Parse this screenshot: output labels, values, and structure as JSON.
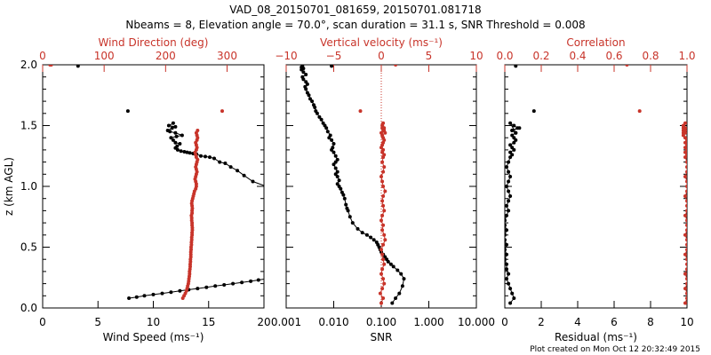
{
  "title_line1": "VAD_08_20150701_081659, 20150701.081718",
  "title_line2": "Nbeams = 8, Elevation angle = 70.0°, scan duration = 31.1 s, SNR Threshold = 0.008",
  "footer": "Plot created on Mon Oct 12 20:32:49 2015",
  "colors": {
    "primary": "#000000",
    "secondary": "#c8342a"
  },
  "chart_data": [
    {
      "type": "line",
      "ylabel": "z (km AGL)",
      "ylim": [
        0,
        2.0
      ],
      "yticks": [
        "0.0",
        "0.5",
        "1.0",
        "1.5",
        "2.0"
      ],
      "bottom_axis": {
        "label": "Wind Speed (ms⁻¹)",
        "xlim": [
          0,
          20
        ],
        "ticks": [
          "0",
          "5",
          "10",
          "15",
          "20"
        ]
      },
      "top_axis": {
        "label": "Wind Direction (deg)",
        "xlim": [
          0,
          360
        ],
        "ticks": [
          "0",
          "100",
          "200",
          "300"
        ]
      },
      "series": [
        {
          "axis": "bottom",
          "color": "#000000",
          "lines": true,
          "x": [
            7.8,
            8.5,
            9.2,
            10,
            10.8,
            11.6,
            12.4,
            13.2,
            14,
            14.8,
            15.6,
            16.4,
            17.2,
            18,
            18.8,
            19.5,
            20.2
          ],
          "y": [
            0.08,
            0.09,
            0.1,
            0.11,
            0.12,
            0.13,
            0.14,
            0.15,
            0.16,
            0.17,
            0.18,
            0.19,
            0.2,
            0.21,
            0.22,
            0.23,
            0.24
          ]
        },
        {
          "axis": "bottom",
          "color": "#000000",
          "lines": true,
          "x": [
            21.5,
            20.2,
            19,
            18.2,
            17.6,
            17,
            16.5,
            16,
            15.5,
            15.1,
            14.7,
            14.3,
            13.9,
            13.6,
            13.3,
            13.05,
            12.8,
            12.5,
            12.2,
            12.0,
            12.15,
            12.4,
            12.0,
            11.8,
            11.6,
            12.1,
            12.6,
            12.0,
            11.5,
            11.3,
            11.7,
            12.0,
            11.4,
            11.8
          ],
          "y": [
            0.95,
            1.0,
            1.04,
            1.09,
            1.13,
            1.16,
            1.19,
            1.2,
            1.23,
            1.24,
            1.245,
            1.25,
            1.265,
            1.27,
            1.275,
            1.28,
            1.285,
            1.29,
            1.3,
            1.315,
            1.33,
            1.35,
            1.36,
            1.38,
            1.4,
            1.41,
            1.42,
            1.44,
            1.45,
            1.46,
            1.48,
            1.49,
            1.5,
            1.52
          ]
        },
        {
          "axis": "bottom",
          "color": "#000000",
          "lines": false,
          "x": [
            7.7,
            3.2
          ],
          "y": [
            1.62,
            1.99
          ]
        },
        {
          "axis": "top",
          "color": "#c8342a",
          "lines": true,
          "x": [
            228,
            230,
            232,
            234,
            235,
            236,
            237,
            237.5,
            238,
            238.5,
            239,
            239,
            239.5,
            240,
            240,
            240.5,
            240.5,
            241,
            241,
            241,
            241.5,
            241.5,
            242,
            242,
            242.5,
            242.5,
            243,
            243,
            243.5,
            243.5,
            243,
            243,
            242.5,
            242.5,
            242,
            243,
            243,
            243.5,
            243,
            242.5,
            243,
            244,
            245,
            246,
            247,
            249,
            250,
            250,
            249,
            248,
            249,
            250,
            251,
            250,
            249,
            250,
            251,
            252,
            250,
            249,
            248,
            250,
            251,
            250,
            249,
            251,
            252,
            251,
            250,
            252
          ],
          "y": [
            0.08,
            0.1,
            0.12,
            0.14,
            0.16,
            0.18,
            0.2,
            0.22,
            0.24,
            0.26,
            0.28,
            0.3,
            0.32,
            0.34,
            0.36,
            0.38,
            0.4,
            0.42,
            0.44,
            0.46,
            0.48,
            0.5,
            0.52,
            0.54,
            0.56,
            0.58,
            0.6,
            0.62,
            0.64,
            0.66,
            0.68,
            0.7,
            0.72,
            0.74,
            0.76,
            0.78,
            0.8,
            0.82,
            0.84,
            0.86,
            0.88,
            0.9,
            0.92,
            0.94,
            0.96,
            0.98,
            1.0,
            1.02,
            1.04,
            1.06,
            1.08,
            1.1,
            1.12,
            1.14,
            1.16,
            1.18,
            1.2,
            1.22,
            1.24,
            1.26,
            1.28,
            1.3,
            1.32,
            1.34,
            1.36,
            1.38,
            1.4,
            1.42,
            1.44,
            1.46
          ]
        },
        {
          "axis": "top",
          "color": "#c8342a",
          "lines": false,
          "x": [
            292,
            12,
            14
          ],
          "y": [
            1.62,
            2.0,
            2.0
          ]
        }
      ]
    },
    {
      "type": "line",
      "ylim": [
        0,
        2.0
      ],
      "bottom_axis": {
        "label": "SNR",
        "scale": "log",
        "xlim": [
          0.001,
          10
        ],
        "ticks": [
          "0.001",
          "0.010",
          "0.100",
          "1.000",
          "10.000"
        ]
      },
      "top_axis": {
        "label": "Vertical velocity (ms⁻¹)",
        "xlim": [
          -10,
          10
        ],
        "ticks": [
          "−10",
          "−5",
          "0",
          "5",
          "10"
        ]
      },
      "reference_line": {
        "axis": "top",
        "x": 0,
        "color": "#c8342a",
        "style": "dotted"
      },
      "series": [
        {
          "axis": "bottom",
          "color": "#000000",
          "lines": true,
          "x": [
            0.17,
            0.2,
            0.24,
            0.28,
            0.3,
            0.26,
            0.22,
            0.18,
            0.16,
            0.14,
            0.13,
            0.12,
            0.11,
            0.1,
            0.095,
            0.09,
            0.085,
            0.08,
            0.07,
            0.06,
            0.05,
            0.04,
            0.032,
            0.025,
            0.022,
            0.02,
            0.019,
            0.018,
            0.017,
            0.016,
            0.015,
            0.014,
            0.013,
            0.012,
            0.013,
            0.012,
            0.011,
            0.012,
            0.011,
            0.01,
            0.011,
            0.012,
            0.011,
            0.01,
            0.009,
            0.0095,
            0.01,
            0.009,
            0.008,
            0.0085,
            0.0075,
            0.007,
            0.0065,
            0.006,
            0.0055,
            0.005,
            0.0045,
            0.0042,
            0.004,
            0.0038,
            0.0035,
            0.0032,
            0.003,
            0.0028,
            0.0026,
            0.0025,
            0.0028,
            0.0026,
            0.0023,
            0.0022,
            0.0026,
            0.0023,
            0.0021,
            0.0023,
            0.0021,
            0.0022
          ],
          "y": [
            0.04,
            0.08,
            0.12,
            0.18,
            0.24,
            0.28,
            0.31,
            0.34,
            0.36,
            0.38,
            0.4,
            0.42,
            0.44,
            0.46,
            0.48,
            0.5,
            0.52,
            0.54,
            0.56,
            0.58,
            0.6,
            0.62,
            0.65,
            0.7,
            0.75,
            0.8,
            0.82,
            0.85,
            0.9,
            0.93,
            0.95,
            0.98,
            1.0,
            1.02,
            1.05,
            1.08,
            1.1,
            1.12,
            1.15,
            1.18,
            1.2,
            1.22,
            1.25,
            1.28,
            1.3,
            1.32,
            1.35,
            1.38,
            1.4,
            1.42,
            1.45,
            1.48,
            1.5,
            1.52,
            1.55,
            1.57,
            1.6,
            1.62,
            1.65,
            1.67,
            1.7,
            1.72,
            1.75,
            1.77,
            1.8,
            1.82,
            1.84,
            1.86,
            1.88,
            1.9,
            1.92,
            1.94,
            1.96,
            1.97,
            1.98,
            1.99
          ]
        },
        {
          "axis": "bottom",
          "color": "#000000",
          "lines": false,
          "x": [
            0.009
          ],
          "y": [
            1.99
          ]
        },
        {
          "axis": "top",
          "color": "#c8342a",
          "lines": true,
          "x": [
            0,
            0.2,
            -0.1,
            0.1,
            0.3,
            0.2,
            0.0,
            0.1,
            0.3,
            0.2,
            0.1,
            0.0,
            0.2,
            0.4,
            0.3,
            0.1,
            0.2,
            0.0,
            0.1,
            0.3,
            0.2,
            0.1,
            0.2,
            0.4,
            0.2,
            0.1,
            0.0,
            0.2,
            0.3,
            0.1,
            0.2,
            0.3,
            0.1,
            0.2,
            0.0,
            0.1,
            0.2,
            0.3,
            0.2,
            0.1,
            0.0,
            0.2,
            0.3,
            0.1,
            0.2,
            0.4,
            0.3,
            0.1
          ],
          "y": [
            0.04,
            0.08,
            0.12,
            0.16,
            0.2,
            0.24,
            0.28,
            0.32,
            0.36,
            0.4,
            0.44,
            0.48,
            0.52,
            0.56,
            0.6,
            0.64,
            0.68,
            0.72,
            0.76,
            0.8,
            0.84,
            0.88,
            0.92,
            0.96,
            1.0,
            1.04,
            1.08,
            1.12,
            1.16,
            1.2,
            1.24,
            1.26,
            1.28,
            1.3,
            1.32,
            1.34,
            1.36,
            1.38,
            1.4,
            1.42,
            1.44,
            1.46,
            1.48,
            1.5,
            1.52,
            1.44,
            1.46,
            1.48
          ]
        },
        {
          "axis": "top",
          "color": "#c8342a",
          "lines": false,
          "x": [
            -2.2,
            1.5
          ],
          "y": [
            1.62,
            2.0
          ]
        }
      ]
    },
    {
      "type": "line",
      "ylim": [
        0,
        2.0
      ],
      "bottom_axis": {
        "label": "Residual (ms⁻¹)",
        "xlim": [
          0,
          10
        ],
        "ticks": [
          "0",
          "2",
          "4",
          "6",
          "8",
          "10"
        ]
      },
      "top_axis": {
        "label": "Correlation",
        "xlim": [
          0,
          1.0
        ],
        "ticks": [
          "0.0",
          "0.2",
          "0.4",
          "0.6",
          "0.8",
          "1.0"
        ]
      },
      "series": [
        {
          "axis": "bottom",
          "color": "#000000",
          "lines": true,
          "x": [
            0.3,
            0.5,
            0.4,
            0.3,
            0.2,
            0.1,
            0.2,
            0.1,
            0.1,
            0.0,
            0.1,
            0.0,
            0.1,
            0.0,
            0.0,
            0.1,
            0.0,
            0.0,
            0.1,
            0.2,
            0.1,
            0.2,
            0.3,
            0.2,
            0.1,
            0.2,
            0.3,
            0.2,
            0.1,
            0.2,
            0.3,
            0.4,
            0.3,
            0.5,
            0.4,
            0.3,
            0.5,
            0.6,
            0.5,
            0.4,
            0.6,
            0.4,
            0.7,
            0.5,
            0.3,
            0.6,
            0.4,
            0.8
          ],
          "y": [
            0.04,
            0.08,
            0.12,
            0.16,
            0.2,
            0.24,
            0.28,
            0.32,
            0.36,
            0.4,
            0.44,
            0.48,
            0.52,
            0.56,
            0.6,
            0.64,
            0.68,
            0.72,
            0.76,
            0.8,
            0.84,
            0.88,
            0.92,
            0.96,
            1.0,
            1.04,
            1.08,
            1.12,
            1.16,
            1.2,
            1.24,
            1.26,
            1.28,
            1.3,
            1.32,
            1.34,
            1.36,
            1.38,
            1.4,
            1.42,
            1.44,
            1.46,
            1.48,
            1.5,
            1.52,
            1.44,
            1.46,
            1.48
          ]
        },
        {
          "axis": "bottom",
          "color": "#000000",
          "lines": false,
          "x": [
            1.6,
            0.6
          ],
          "y": [
            1.62,
            1.99
          ]
        },
        {
          "axis": "top",
          "color": "#c8342a",
          "lines": true,
          "x": [
            0.99,
            1.0,
            1.0,
            0.99,
            1.0,
            1.0,
            0.99,
            1.0,
            1.0,
            1.0,
            0.99,
            1.0,
            1.0,
            1.0,
            0.99,
            1.0,
            1.0,
            1.0,
            0.99,
            1.0,
            1.0,
            1.0,
            0.99,
            1.0,
            1.0,
            1.0,
            0.99,
            1.0,
            1.0,
            1.0,
            0.99,
            1.0,
            0.99,
            1.0,
            0.99,
            1.0,
            0.99,
            1.0,
            0.99,
            0.98,
            0.99,
            0.98,
            0.99,
            0.98,
            0.99,
            0.98,
            0.99,
            0.98
          ],
          "y": [
            0.04,
            0.08,
            0.12,
            0.16,
            0.2,
            0.24,
            0.28,
            0.32,
            0.36,
            0.4,
            0.44,
            0.48,
            0.52,
            0.56,
            0.6,
            0.64,
            0.68,
            0.72,
            0.76,
            0.8,
            0.84,
            0.88,
            0.92,
            0.96,
            1.0,
            1.04,
            1.08,
            1.12,
            1.16,
            1.2,
            1.24,
            1.26,
            1.28,
            1.3,
            1.32,
            1.34,
            1.36,
            1.38,
            1.4,
            1.42,
            1.44,
            1.46,
            1.48,
            1.5,
            1.52,
            1.44,
            1.46,
            1.48
          ]
        },
        {
          "axis": "top",
          "color": "#c8342a",
          "lines": false,
          "x": [
            0.74,
            0.67
          ],
          "y": [
            1.62,
            2.0
          ]
        }
      ]
    }
  ]
}
